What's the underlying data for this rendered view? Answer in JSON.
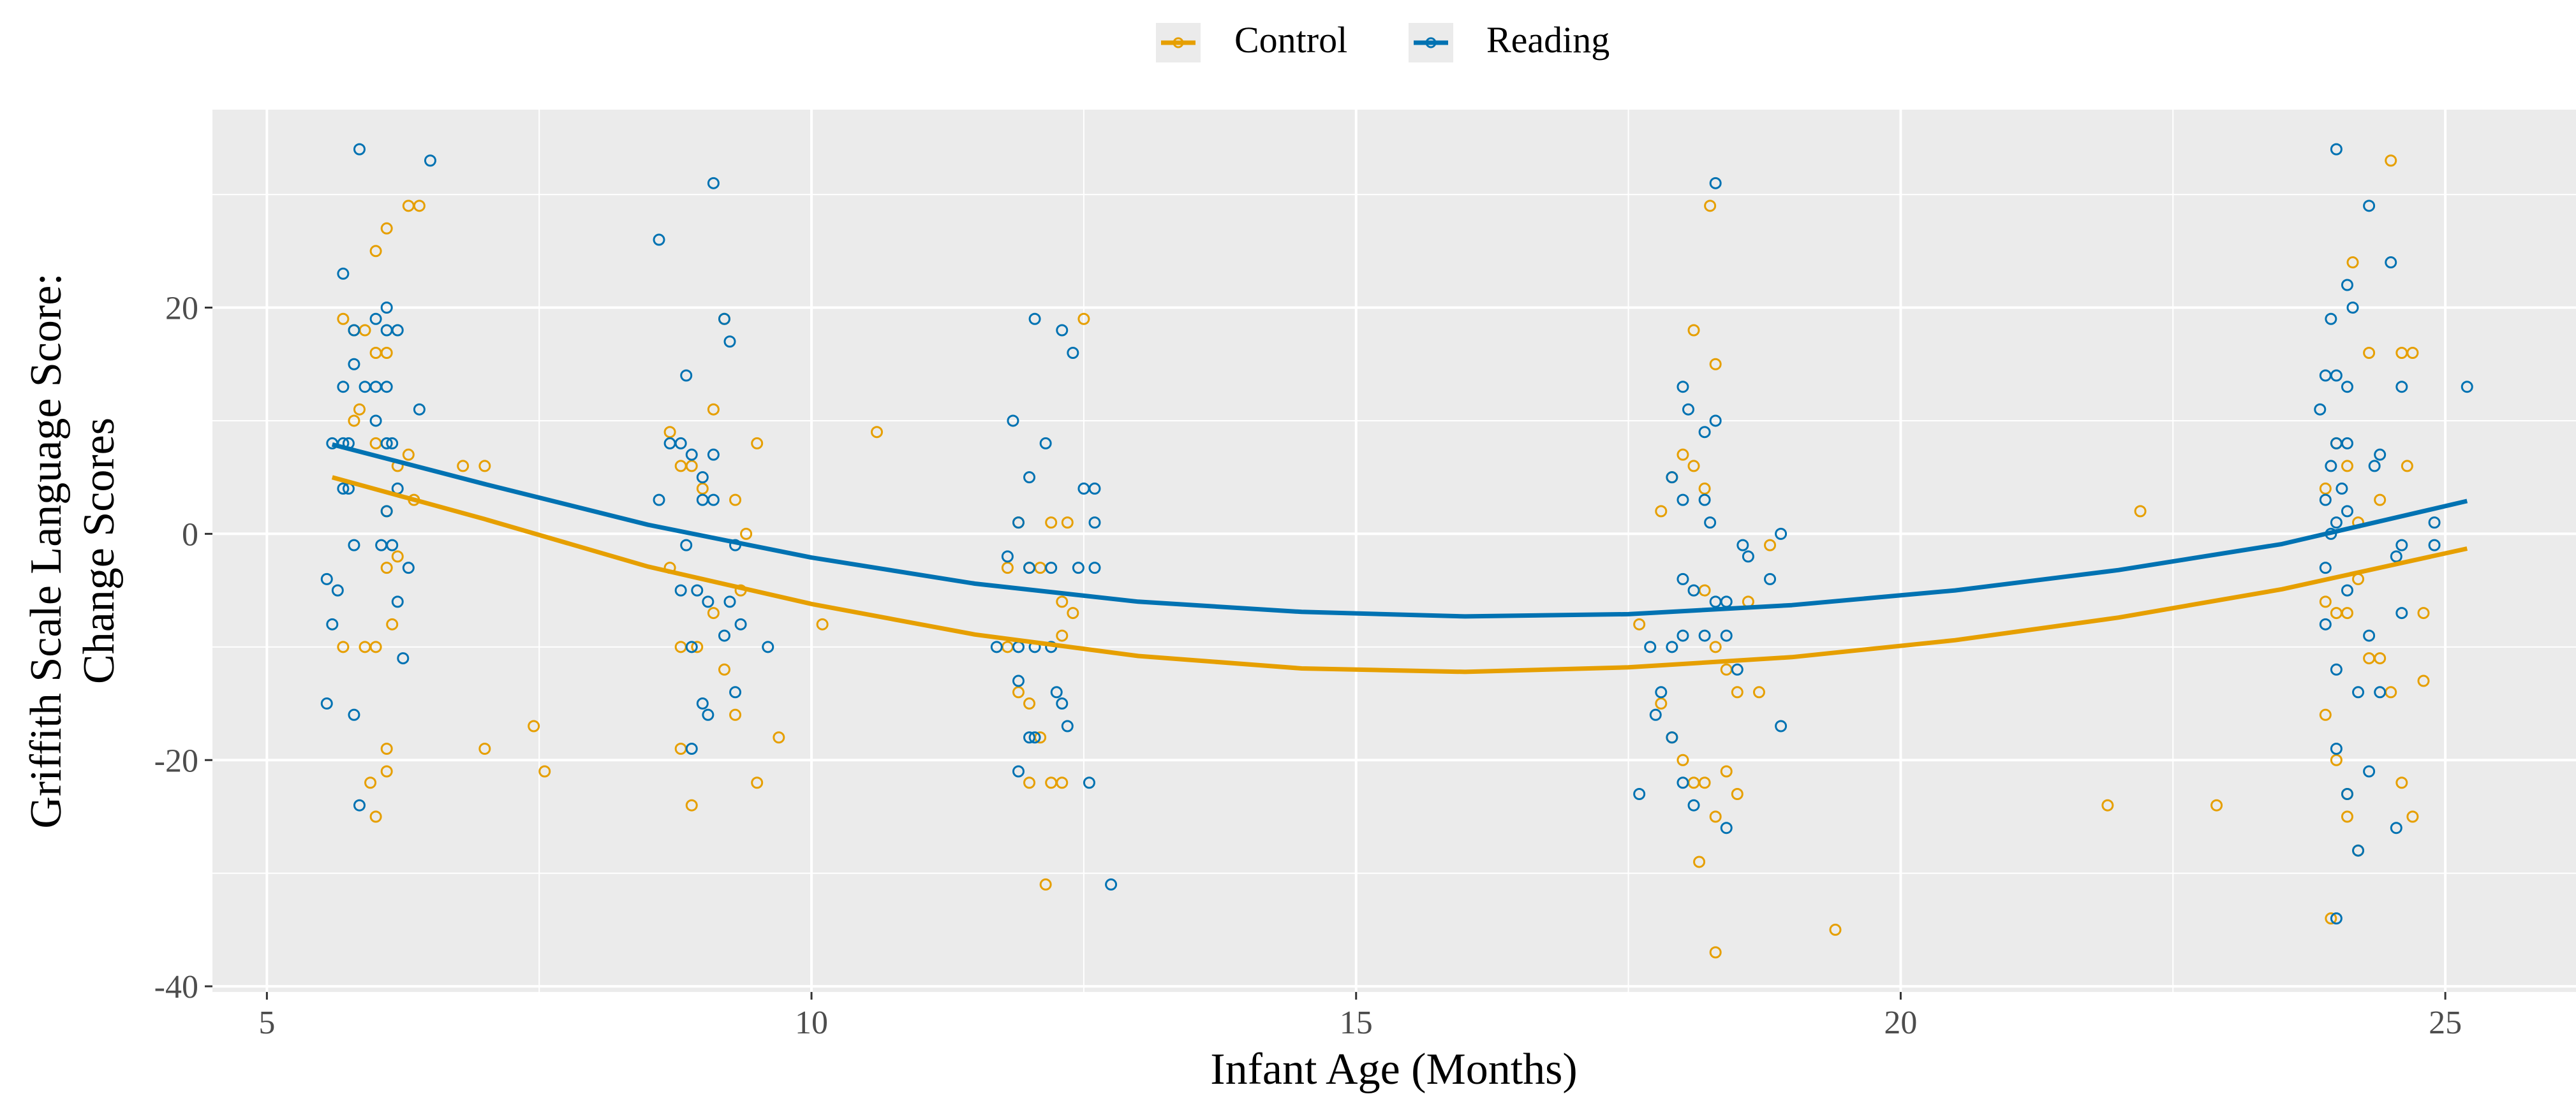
{
  "chart_data": {
    "type": "scatter",
    "xlabel": "Infant Age (Months)",
    "ylabel": [
      "Griffith Scale Language Score:",
      "Change Scores"
    ],
    "xlim": [
      4.5,
      26.2
    ],
    "ylim": [
      -40.5,
      37.5
    ],
    "x_ticks": [
      5,
      10,
      15,
      20,
      25
    ],
    "y_ticks": [
      -40,
      -20,
      0,
      20
    ],
    "y_tick_labels": [
      "-40",
      "-20",
      "0",
      "20"
    ],
    "grid": true,
    "legend_position": "top",
    "series": [
      {
        "name": "Control",
        "color": "#E69F00",
        "fit_curve": {
          "x": [
            5.6,
            7,
            8.5,
            10,
            11.5,
            13,
            14.5,
            16,
            17.5,
            19,
            20.5,
            22,
            23.5,
            25.2
          ],
          "y": [
            5,
            1.3,
            -2.9,
            -6.2,
            -8.9,
            -10.8,
            -11.9,
            -12.2,
            -11.8,
            -10.9,
            -9.4,
            -7.4,
            -4.9,
            -1.3
          ]
        },
        "points": [
          [
            5.7,
            19
          ],
          [
            5.8,
            18
          ],
          [
            5.9,
            18
          ],
          [
            6.0,
            16
          ],
          [
            6.1,
            16
          ],
          [
            6.1,
            27
          ],
          [
            6.0,
            25
          ],
          [
            6.4,
            29
          ],
          [
            6.3,
            29
          ],
          [
            5.85,
            11
          ],
          [
            5.8,
            10
          ],
          [
            6.0,
            8
          ],
          [
            6.2,
            6
          ],
          [
            6.3,
            7
          ],
          [
            6.35,
            3
          ],
          [
            6.1,
            2
          ],
          [
            6.2,
            -2
          ],
          [
            6.1,
            -3
          ],
          [
            5.7,
            -10
          ],
          [
            5.9,
            -10
          ],
          [
            6.0,
            -10
          ],
          [
            6.15,
            -8
          ],
          [
            6.1,
            -19
          ],
          [
            6.1,
            -21
          ],
          [
            5.95,
            -22
          ],
          [
            6.0,
            -25
          ],
          [
            6.8,
            6
          ],
          [
            7.0,
            6
          ],
          [
            7.0,
            -19
          ],
          [
            7.45,
            -17
          ],
          [
            7.55,
            -21
          ],
          [
            8.7,
            9
          ],
          [
            8.8,
            6
          ],
          [
            8.9,
            6
          ],
          [
            9.0,
            4
          ],
          [
            9.1,
            11
          ],
          [
            9.2,
            19
          ],
          [
            9.3,
            3
          ],
          [
            9.4,
            0
          ],
          [
            9.5,
            8
          ],
          [
            8.7,
            -3
          ],
          [
            8.8,
            -10
          ],
          [
            8.95,
            -10
          ],
          [
            9.1,
            -7
          ],
          [
            9.2,
            -12
          ],
          [
            9.3,
            -16
          ],
          [
            9.35,
            -5
          ],
          [
            9.5,
            -22
          ],
          [
            9.7,
            -18
          ],
          [
            8.9,
            -24
          ],
          [
            8.8,
            -19
          ],
          [
            10.1,
            -8
          ],
          [
            10.6,
            9
          ],
          [
            11.8,
            -3
          ],
          [
            11.9,
            1
          ],
          [
            12.0,
            -3
          ],
          [
            12.1,
            -3
          ],
          [
            12.2,
            1
          ],
          [
            12.3,
            -9
          ],
          [
            12.4,
            -7
          ],
          [
            12.5,
            19
          ],
          [
            11.8,
            -10
          ],
          [
            11.9,
            -14
          ],
          [
            12.0,
            -15
          ],
          [
            12.1,
            -18
          ],
          [
            12.2,
            -22
          ],
          [
            12.3,
            -22
          ],
          [
            12.15,
            -31
          ],
          [
            12.0,
            -22
          ],
          [
            12.3,
            -6
          ],
          [
            12.35,
            1
          ],
          [
            17.6,
            -8
          ],
          [
            17.8,
            2
          ],
          [
            17.9,
            5
          ],
          [
            18.0,
            7
          ],
          [
            18.1,
            18
          ],
          [
            18.2,
            4
          ],
          [
            18.25,
            29
          ],
          [
            18.3,
            15
          ],
          [
            18.1,
            6
          ],
          [
            18.2,
            -5
          ],
          [
            18.3,
            -10
          ],
          [
            18.4,
            -12
          ],
          [
            18.5,
            -14
          ],
          [
            18.6,
            -6
          ],
          [
            17.8,
            -15
          ],
          [
            17.9,
            -18
          ],
          [
            18.0,
            -20
          ],
          [
            18.1,
            -22
          ],
          [
            18.2,
            -22
          ],
          [
            18.3,
            -25
          ],
          [
            18.4,
            -21
          ],
          [
            18.5,
            -23
          ],
          [
            18.15,
            -29
          ],
          [
            18.3,
            -37
          ],
          [
            18.7,
            -14
          ],
          [
            18.8,
            -1
          ],
          [
            19.4,
            -35
          ],
          [
            21.9,
            -24
          ],
          [
            22.2,
            2
          ],
          [
            22.9,
            -24
          ],
          [
            23.9,
            4
          ],
          [
            24.0,
            8
          ],
          [
            24.1,
            6
          ],
          [
            24.15,
            24
          ],
          [
            24.2,
            1
          ],
          [
            24.3,
            16
          ],
          [
            24.4,
            3
          ],
          [
            24.5,
            33
          ],
          [
            24.6,
            16
          ],
          [
            24.65,
            6
          ],
          [
            24.7,
            16
          ],
          [
            24.8,
            -7
          ],
          [
            24.8,
            -13
          ],
          [
            23.9,
            -6
          ],
          [
            24.0,
            -7
          ],
          [
            24.1,
            -7
          ],
          [
            24.2,
            -4
          ],
          [
            24.3,
            -11
          ],
          [
            24.4,
            -11
          ],
          [
            24.5,
            -14
          ],
          [
            23.9,
            -16
          ],
          [
            24.0,
            -20
          ],
          [
            24.1,
            -23
          ],
          [
            24.1,
            -25
          ],
          [
            24.2,
            -28
          ],
          [
            24.6,
            -22
          ],
          [
            24.7,
            -25
          ],
          [
            23.95,
            -34
          ]
        ]
      },
      {
        "name": "Reading",
        "color": "#0072B2",
        "fit_curve": {
          "x": [
            5.6,
            7,
            8.5,
            10,
            11.5,
            13,
            14.5,
            16,
            17.5,
            19,
            20.5,
            22,
            23.5,
            25.2
          ],
          "y": [
            7.9,
            4.4,
            0.8,
            -2.1,
            -4.4,
            -6,
            -6.9,
            -7.3,
            -7.1,
            -6.3,
            -5,
            -3.2,
            -0.9,
            2.9
          ]
        },
        "points": [
          [
            5.85,
            34
          ],
          [
            6.5,
            33
          ],
          [
            5.7,
            23
          ],
          [
            6.1,
            20
          ],
          [
            5.8,
            18
          ],
          [
            6.0,
            19
          ],
          [
            6.1,
            18
          ],
          [
            6.2,
            18
          ],
          [
            5.8,
            15
          ],
          [
            5.7,
            13
          ],
          [
            5.9,
            13
          ],
          [
            6.0,
            13
          ],
          [
            6.1,
            13
          ],
          [
            6.4,
            11
          ],
          [
            6.0,
            10
          ],
          [
            5.6,
            8
          ],
          [
            5.7,
            8
          ],
          [
            5.75,
            8
          ],
          [
            6.1,
            8
          ],
          [
            6.15,
            8
          ],
          [
            5.7,
            4
          ],
          [
            5.75,
            4
          ],
          [
            6.2,
            4
          ],
          [
            6.1,
            2
          ],
          [
            5.8,
            -1
          ],
          [
            6.05,
            -1
          ],
          [
            6.15,
            -1
          ],
          [
            6.3,
            -3
          ],
          [
            6.2,
            -6
          ],
          [
            5.55,
            -4
          ],
          [
            5.65,
            -5
          ],
          [
            5.6,
            -8
          ],
          [
            6.25,
            -11
          ],
          [
            5.55,
            -15
          ],
          [
            5.8,
            -16
          ],
          [
            5.85,
            -24
          ],
          [
            8.6,
            26
          ],
          [
            9.1,
            31
          ],
          [
            9.2,
            19
          ],
          [
            9.25,
            17
          ],
          [
            8.85,
            14
          ],
          [
            8.7,
            8
          ],
          [
            8.8,
            8
          ],
          [
            8.9,
            7
          ],
          [
            9.1,
            7
          ],
          [
            9.0,
            5
          ],
          [
            8.6,
            3
          ],
          [
            9.0,
            3
          ],
          [
            9.1,
            3
          ],
          [
            8.85,
            -1
          ],
          [
            9.3,
            -1
          ],
          [
            8.8,
            -5
          ],
          [
            8.95,
            -5
          ],
          [
            9.05,
            -6
          ],
          [
            9.25,
            -6
          ],
          [
            8.9,
            -10
          ],
          [
            9.2,
            -9
          ],
          [
            9.35,
            -8
          ],
          [
            9.6,
            -10
          ],
          [
            9.0,
            -15
          ],
          [
            9.05,
            -16
          ],
          [
            8.9,
            -19
          ],
          [
            9.3,
            -14
          ],
          [
            12.05,
            19
          ],
          [
            12.3,
            18
          ],
          [
            12.4,
            16
          ],
          [
            11.85,
            10
          ],
          [
            12.15,
            8
          ],
          [
            12.5,
            4
          ],
          [
            12.6,
            4
          ],
          [
            12.0,
            5
          ],
          [
            11.9,
            1
          ],
          [
            12.6,
            1
          ],
          [
            11.8,
            -2
          ],
          [
            12.0,
            -3
          ],
          [
            12.2,
            -3
          ],
          [
            12.45,
            -3
          ],
          [
            12.6,
            -3
          ],
          [
            11.7,
            -10
          ],
          [
            11.9,
            -10
          ],
          [
            12.05,
            -10
          ],
          [
            12.2,
            -10
          ],
          [
            11.9,
            -13
          ],
          [
            12.25,
            -14
          ],
          [
            12.3,
            -15
          ],
          [
            12.0,
            -18
          ],
          [
            12.05,
            -18
          ],
          [
            11.9,
            -21
          ],
          [
            12.35,
            -17
          ],
          [
            12.55,
            -22
          ],
          [
            12.75,
            -31
          ],
          [
            18.3,
            31
          ],
          [
            18.0,
            13
          ],
          [
            18.05,
            11
          ],
          [
            18.2,
            9
          ],
          [
            18.3,
            10
          ],
          [
            17.9,
            5
          ],
          [
            18.0,
            3
          ],
          [
            18.2,
            3
          ],
          [
            18.25,
            1
          ],
          [
            18.55,
            -1
          ],
          [
            18.6,
            -2
          ],
          [
            18.9,
            0
          ],
          [
            18.0,
            -4
          ],
          [
            18.1,
            -5
          ],
          [
            18.3,
            -6
          ],
          [
            18.4,
            -6
          ],
          [
            17.7,
            -10
          ],
          [
            17.9,
            -10
          ],
          [
            18.0,
            -9
          ],
          [
            18.2,
            -9
          ],
          [
            18.4,
            -9
          ],
          [
            18.5,
            -12
          ],
          [
            17.8,
            -14
          ],
          [
            17.75,
            -16
          ],
          [
            17.9,
            -18
          ],
          [
            18.0,
            -22
          ],
          [
            17.6,
            -23
          ],
          [
            18.1,
            -24
          ],
          [
            18.4,
            -26
          ],
          [
            18.8,
            -4
          ],
          [
            18.9,
            -17
          ]
        ],
        "points_2": [
          [
            24.0,
            34
          ],
          [
            24.3,
            29
          ],
          [
            24.5,
            24
          ],
          [
            24.1,
            22
          ],
          [
            24.15,
            20
          ],
          [
            23.95,
            19
          ],
          [
            23.9,
            14
          ],
          [
            24.0,
            14
          ],
          [
            24.1,
            13
          ],
          [
            23.85,
            11
          ],
          [
            24.0,
            8
          ],
          [
            24.1,
            8
          ],
          [
            23.95,
            6
          ],
          [
            24.4,
            7
          ],
          [
            24.35,
            6
          ],
          [
            24.05,
            4
          ],
          [
            23.9,
            3
          ],
          [
            24.1,
            2
          ],
          [
            24.0,
            1
          ],
          [
            23.95,
            0
          ],
          [
            24.6,
            13
          ],
          [
            24.9,
            1
          ],
          [
            25.2,
            13
          ],
          [
            23.9,
            -3
          ],
          [
            24.1,
            -5
          ],
          [
            24.55,
            -2
          ],
          [
            24.6,
            -1
          ],
          [
            24.9,
            -1
          ],
          [
            23.9,
            -8
          ],
          [
            24.0,
            -12
          ],
          [
            24.3,
            -9
          ],
          [
            24.2,
            -14
          ],
          [
            24.4,
            -14
          ],
          [
            24.3,
            -21
          ],
          [
            24.0,
            -19
          ],
          [
            24.1,
            -23
          ],
          [
            24.55,
            -26
          ],
          [
            24.2,
            -28
          ],
          [
            24.0,
            -34
          ],
          [
            24.6,
            -7
          ]
        ]
      }
    ]
  }
}
